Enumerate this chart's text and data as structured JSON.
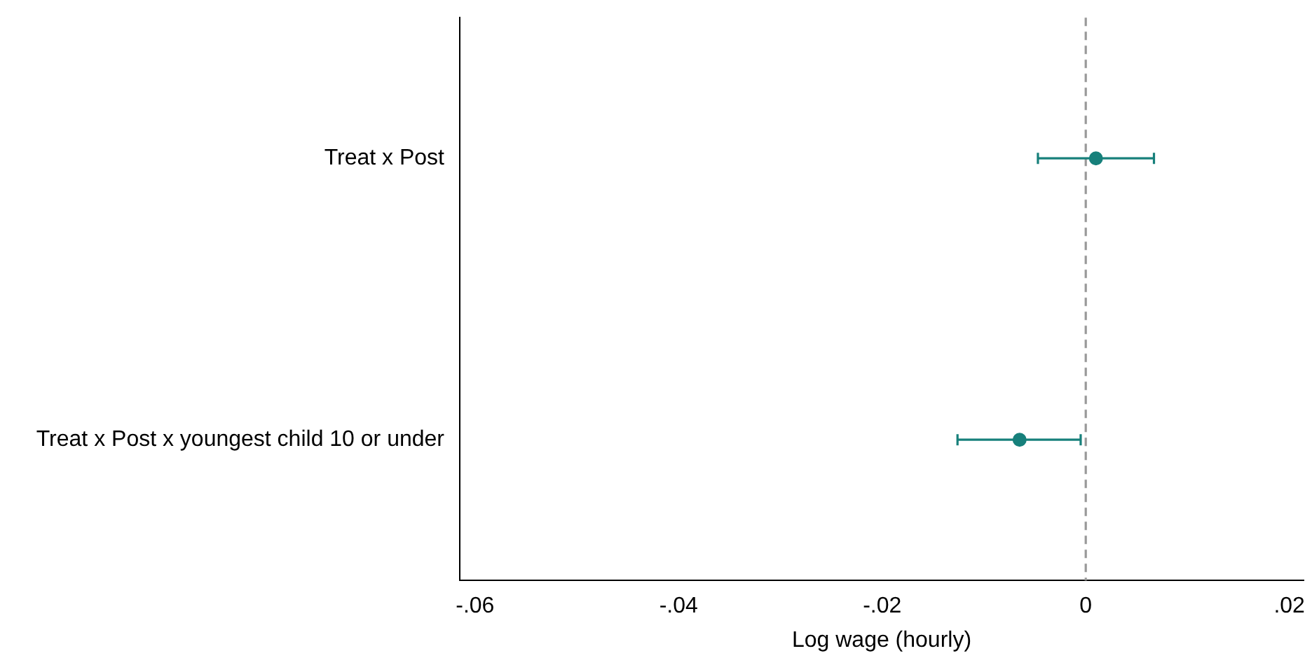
{
  "chart_data": {
    "type": "scatter",
    "orientation": "horizontal",
    "xlabel": "Log wage (hourly)",
    "categories": [
      "Treat x Post",
      "Treat x Post x youngest child 10 or under"
    ],
    "values": [
      0.001,
      -0.0065
    ],
    "errors": [
      [
        -0.0047,
        0.0067
      ],
      [
        -0.0126,
        -0.0005
      ]
    ],
    "color": "#17807b",
    "marker": "circle",
    "xlim": [
      -0.0615,
      0.0214
    ],
    "xticks": [
      {
        "value": -0.06,
        "label": "-.06"
      },
      {
        "value": -0.04,
        "label": "-.04"
      },
      {
        "value": -0.02,
        "label": "-.02"
      },
      {
        "value": 0,
        "label": "0"
      },
      {
        "value": 0.02,
        "label": ".02"
      }
    ],
    "ref_lines": [
      {
        "axis": "x",
        "value": 0,
        "color": "#999999",
        "line_style": "dashed"
      }
    ],
    "grid": false,
    "legend": false
  }
}
